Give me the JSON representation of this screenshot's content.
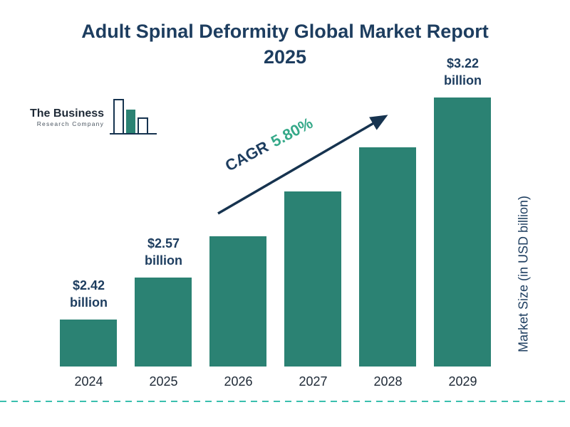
{
  "title": {
    "line1": "Adult Spinal Deformity Global Market Report",
    "line2": "2025"
  },
  "logo": {
    "line1": "The Business",
    "line2": "Research Company"
  },
  "chart_data": {
    "type": "bar",
    "title": "Adult Spinal Deformity Global Market Report 2025",
    "categories": [
      "2024",
      "2025",
      "2026",
      "2027",
      "2028",
      "2029"
    ],
    "values": [
      2.42,
      2.57,
      2.72,
      2.88,
      3.04,
      3.22
    ],
    "value_labels": [
      {
        "index": 0,
        "line1": "$2.42",
        "line2": "billion"
      },
      {
        "index": 1,
        "line1": "$2.57",
        "line2": "billion"
      },
      {
        "index": 5,
        "line1": "$3.22",
        "line2": "billion"
      }
    ],
    "cagr_label": "CAGR",
    "cagr_value": "5.80%",
    "ylabel": "Market Size (in USD billion)",
    "xlabel": "",
    "ylim": [
      2.25,
      3.35
    ],
    "grid": false,
    "legend": "none"
  },
  "colors": {
    "bar": "#2b8273",
    "title": "#1d3d5f",
    "navy": "#1d3d5f",
    "cagr_value": "#36a989",
    "dash": "#3abfae",
    "arrow": "#16334f",
    "year_label": "#1e2936"
  }
}
